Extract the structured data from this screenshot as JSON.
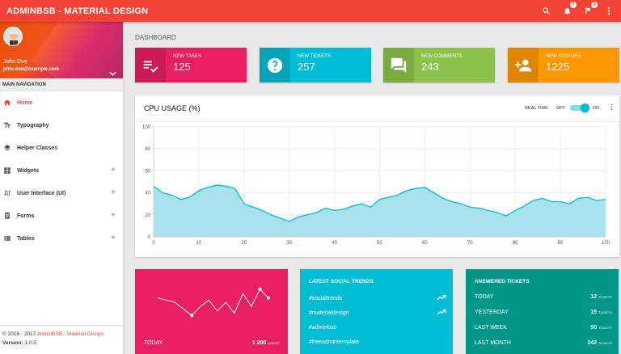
{
  "topbar": {
    "brand": "ADMINBSB - MATERIAL DESIGN",
    "notif_count": "7",
    "flag_count": "9",
    "icons": [
      "search-icon",
      "bell-icon",
      "flag-icon",
      "more-vert-icon"
    ]
  },
  "sidebar": {
    "user_name": "John Doe",
    "user_email": "john.doe@example.com",
    "nav_header": "MAIN NAVIGATION",
    "items": [
      {
        "label": "Home",
        "icon": "home-icon"
      },
      {
        "label": "Typography",
        "icon": "text-fields-icon"
      },
      {
        "label": "Helper Classes",
        "icon": "layers-icon"
      },
      {
        "label": "Widgets",
        "icon": "widgets-icon"
      },
      {
        "label": "User Interface (UI)",
        "icon": "swap-calls-icon"
      },
      {
        "label": "Forms",
        "icon": "assignment-icon"
      },
      {
        "label": "Tables",
        "icon": "view-list-icon"
      }
    ],
    "footer_copyright_prefix": "© 2016 - 2017 ",
    "footer_copyright_link": "AdminBSB - Material Design",
    "footer_copyright_suffix": ".",
    "footer_version_label": "Version: ",
    "footer_version": "1.0.5"
  },
  "main": {
    "block_header": "DASHBOARD",
    "info_boxes": [
      {
        "label": "NEW TASKS",
        "value": "125",
        "color": "#e91e63",
        "icon": "playlist-add-check-icon"
      },
      {
        "label": "NEW TICKETS",
        "value": "257",
        "color": "#00bcd4",
        "icon": "help-icon"
      },
      {
        "label": "NEW COMMENTS",
        "value": "243",
        "color": "#8bc34a",
        "icon": "forum-icon"
      },
      {
        "label": "NEW VISITORS",
        "value": "1225",
        "color": "#ff9800",
        "icon": "person-add-icon"
      }
    ],
    "cpu": {
      "title": "CPU USAGE (%)",
      "realtime_label": "REAL TIME",
      "off_label": "OFF",
      "on_label": "ON"
    },
    "social": {
      "title": "LATEST SOCIAL TRENDS",
      "items": [
        "#socialtrends",
        "#materialdesign",
        "#adminbsb",
        "#freeadmintemplate"
      ]
    },
    "answered": {
      "title": "ANSWERED TICKETS",
      "rows": [
        {
          "label": "TODAY",
          "value": "12",
          "unit": "TICKETS"
        },
        {
          "label": "YESTERDAY",
          "value": "15",
          "unit": "TICKETS"
        },
        {
          "label": "LAST WEEK",
          "value": "90",
          "unit": "TICKETS"
        },
        {
          "label": "LAST MONTH",
          "value": "342",
          "unit": "TICKETS"
        }
      ]
    },
    "visits": {
      "today_label": "TODAY",
      "today_value": "1 200",
      "today_unit": "USERS"
    }
  },
  "chart_data": [
    {
      "type": "area",
      "title": "CPU USAGE (%)",
      "xlim": [
        0,
        100
      ],
      "ylim": [
        0,
        100
      ],
      "x_ticks": [
        "0",
        "10",
        "20",
        "30",
        "40",
        "50",
        "60",
        "70",
        "80",
        "90",
        "100"
      ],
      "y_ticks": [
        "0",
        "20",
        "40",
        "60",
        "80",
        "100"
      ],
      "color": "#00bcd4",
      "fill": "#a8e3ed",
      "grid": true,
      "x": [
        0,
        2,
        4,
        6,
        8,
        10,
        12,
        14,
        16,
        18,
        20,
        22,
        24,
        26,
        28,
        30,
        32,
        34,
        36,
        38,
        40,
        42,
        44,
        46,
        48,
        50,
        52,
        54,
        56,
        58,
        60,
        62,
        64,
        66,
        68,
        70,
        72,
        74,
        76,
        78,
        80,
        82,
        84,
        86,
        88,
        90,
        92,
        94,
        96,
        98,
        100
      ],
      "y": [
        46,
        40,
        38,
        34,
        36,
        42,
        45,
        47,
        46,
        44,
        30,
        27,
        24,
        20,
        17,
        14,
        18,
        20,
        22,
        26,
        24,
        25,
        28,
        30,
        27,
        34,
        36,
        38,
        42,
        44,
        45,
        40,
        35,
        32,
        30,
        27,
        26,
        24,
        22,
        19,
        24,
        28,
        33,
        35,
        32,
        32,
        30,
        35,
        36,
        33,
        34
      ]
    },
    {
      "type": "line",
      "title": "",
      "color": "#ffffff",
      "x": [
        0,
        1,
        2,
        3,
        4,
        5,
        6,
        7,
        8,
        9,
        10,
        11,
        12,
        13
      ],
      "y": [
        60,
        55,
        50,
        35,
        20,
        40,
        55,
        30,
        50,
        25,
        70,
        40,
        80,
        60
      ]
    }
  ]
}
